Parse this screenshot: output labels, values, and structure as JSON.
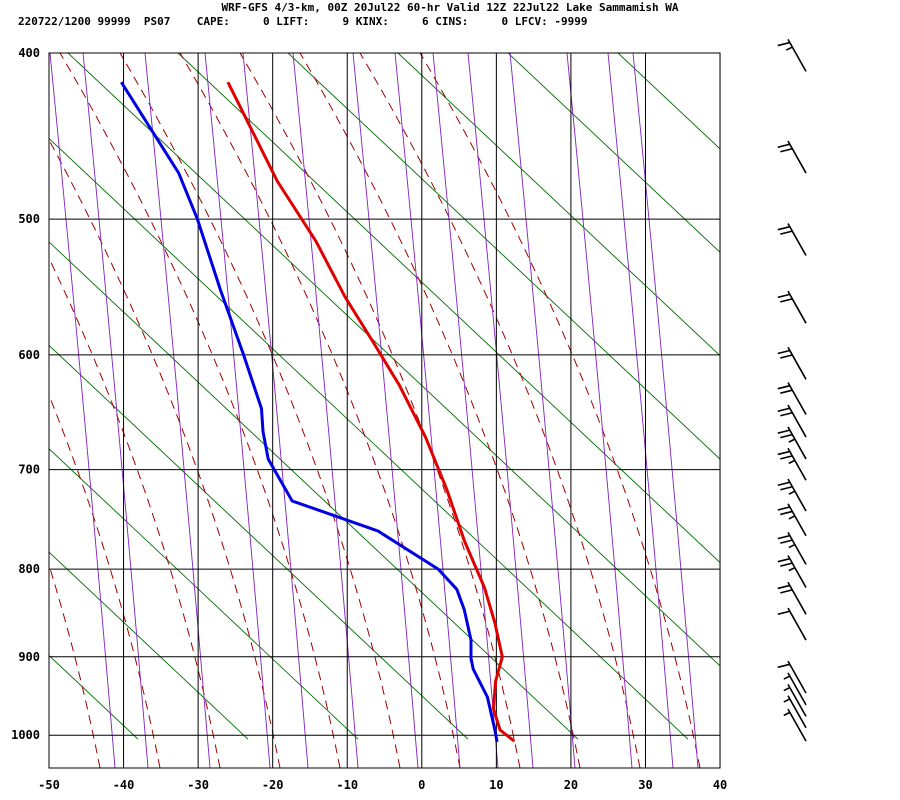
{
  "header": {
    "line1": "WRF-GFS 4/3-km, 00Z 20Jul22 60-hr Valid 12Z 22Jul22 Lake Sammamish WA",
    "line2": "220722/1200 99999  PS07    CAPE:     0 LIFT:     9 KINX:     6 CINS:     0 LFCV: -9999"
  },
  "chart_data": {
    "type": "line",
    "title": "WRF-GFS 4/3-km, 00Z 20Jul22 60-hr Valid 12Z 22Jul22 Lake Sammamish WA",
    "x_axis": {
      "range": [
        -50,
        40
      ],
      "ticks": [
        -50,
        -40,
        -30,
        -20,
        -10,
        0,
        10,
        20,
        30,
        40
      ]
    },
    "y_axis": {
      "scale": "log-pressure",
      "range": [
        1045,
        400
      ],
      "ticks": [
        400,
        500,
        600,
        700,
        800,
        900,
        1000
      ]
    },
    "grid": true,
    "series": [
      {
        "color": "#e00000",
        "points": [
          [
            12.4,
            1008
          ],
          [
            10.5,
            993
          ],
          [
            9.6,
            965
          ],
          [
            9.9,
            930
          ],
          [
            10.8,
            900
          ],
          [
            9.8,
            860
          ],
          [
            8.4,
            820
          ],
          [
            5.7,
            770
          ],
          [
            3.4,
            720
          ],
          [
            0.5,
            670
          ],
          [
            -3.0,
            625
          ],
          [
            -6.5,
            590
          ],
          [
            -10.3,
            555
          ],
          [
            -14.2,
            515
          ],
          [
            -19.4,
            475
          ],
          [
            -26.0,
            416
          ]
        ]
      },
      {
        "color": "#0000e0",
        "points": [
          [
            10.1,
            1009
          ],
          [
            9.8,
            993
          ],
          [
            8.8,
            950
          ],
          [
            6.9,
            915
          ],
          [
            6.6,
            902
          ],
          [
            6.6,
            880
          ],
          [
            5.7,
            845
          ],
          [
            4.7,
            822
          ],
          [
            2.2,
            800
          ],
          [
            -5.9,
            760
          ],
          [
            -17.4,
            730
          ],
          [
            -20.6,
            690
          ],
          [
            -21.3,
            665
          ],
          [
            -21.5,
            645
          ],
          [
            -23.9,
            600
          ],
          [
            -27.0,
            550
          ],
          [
            -30.1,
            500
          ],
          [
            -32.6,
            470
          ],
          [
            -40.3,
            416
          ]
        ]
      }
    ],
    "wind_barbs": [
      {
        "pressure": 1008,
        "speed_kt": 5
      },
      {
        "pressure": 990,
        "speed_kt": 5
      },
      {
        "pressure": 975,
        "speed_kt": 5
      },
      {
        "pressure": 960,
        "speed_kt": 5
      },
      {
        "pressure": 945,
        "speed_kt": 10
      },
      {
        "pressure": 880,
        "speed_kt": 10
      },
      {
        "pressure": 850,
        "speed_kt": 20
      },
      {
        "pressure": 820,
        "speed_kt": 25
      },
      {
        "pressure": 795,
        "speed_kt": 25
      },
      {
        "pressure": 765,
        "speed_kt": 25
      },
      {
        "pressure": 740,
        "speed_kt": 25
      },
      {
        "pressure": 710,
        "speed_kt": 25
      },
      {
        "pressure": 690,
        "speed_kt": 25
      },
      {
        "pressure": 670,
        "speed_kt": 20
      },
      {
        "pressure": 650,
        "speed_kt": 20
      },
      {
        "pressure": 620,
        "speed_kt": 20
      },
      {
        "pressure": 575,
        "speed_kt": 20
      },
      {
        "pressure": 525,
        "speed_kt": 20
      },
      {
        "pressure": 470,
        "speed_kt": 20
      },
      {
        "pressure": 410,
        "speed_kt": 15
      }
    ],
    "colors": {
      "dry_adiabat": "#006d00",
      "moist_adiabat": "#a00000",
      "isopleth": "#8020c0"
    }
  }
}
